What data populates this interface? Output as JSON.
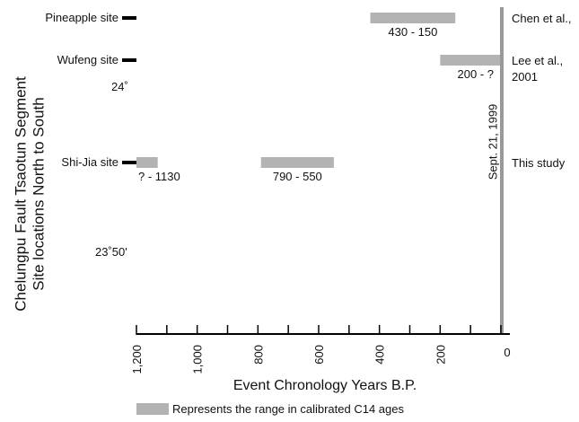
{
  "chart_data": {
    "type": "range-bar",
    "xlabel": "Event Chronology Years B.P.",
    "ylabel": [
      "Chelungpu Fault Tsaotun Segment",
      "Site locations North to South"
    ],
    "x_reversed": true,
    "xlim": [
      1200,
      0
    ],
    "x_ticks": [
      1200,
      1000,
      800,
      600,
      400,
      200,
      0
    ],
    "x_tick_labels": [
      "1,200",
      "1,000",
      "800",
      "600",
      "400",
      "200",
      "0"
    ],
    "x_minor_step": 100,
    "sites": [
      {
        "name": "Pineapple site",
        "reference": "Chen et al.,"
      },
      {
        "name": "Wufeng site",
        "reference": "Lee et al., 2001"
      },
      {
        "name": "Shi-Jia site",
        "reference": "This study"
      }
    ],
    "ranges": [
      {
        "site": "Pineapple site",
        "start": 430,
        "end": 150,
        "label": "430 - 150"
      },
      {
        "site": "Wufeng site",
        "start": 200,
        "end": 0,
        "label": "200 - ?"
      },
      {
        "site": "Shi-Jia site",
        "start": 1200,
        "end": 1130,
        "label": "? - 1130"
      },
      {
        "site": "Shi-Jia site",
        "start": 790,
        "end": 550,
        "label": "790 - 550"
      }
    ],
    "latitude_labels": [
      "24˚",
      "23˚50'"
    ],
    "event_line": {
      "x": 0,
      "label": "Sept. 21, 1999"
    },
    "legend": {
      "text": "Represents the range in calibrated C14 ages",
      "color": "#b3b3b3"
    },
    "colors": {
      "bar": "#b3b3b3",
      "event_line": "#999999",
      "axis": "#000000"
    }
  }
}
